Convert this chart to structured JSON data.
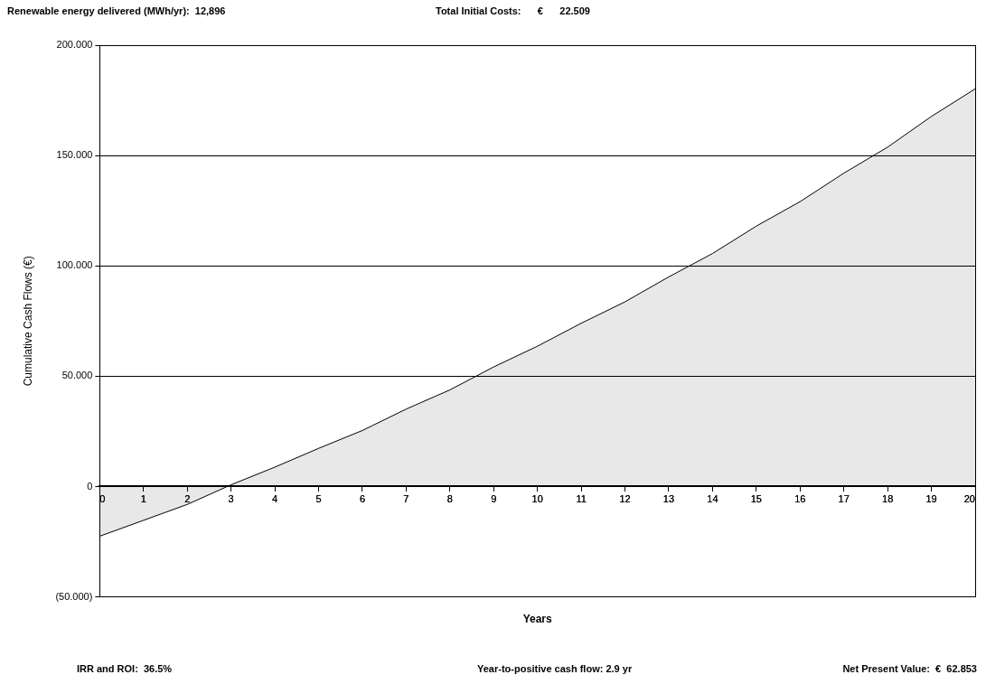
{
  "chart_data": {
    "type": "area",
    "xlabel": "Years",
    "ylabel": "Cumulative Cash Flows (€)",
    "annotations": [
      "Renewable energy delivered (MWh/yr):  12,896",
      "Total Initial Costs:      €      22.509",
      "IRR and ROI:  36.5%",
      "Year-to-positive cash flow: 2.9 yr",
      "Net Present Value:  €  62.853"
    ],
    "x": [
      0,
      1,
      2,
      3,
      4,
      5,
      6,
      7,
      8,
      9,
      10,
      11,
      12,
      13,
      14,
      15,
      16,
      17,
      18,
      19,
      20
    ],
    "series": [
      {
        "color": "#000000",
        "values": [
          -22.5,
          -15.3,
          -8.1,
          0.8,
          8.8,
          17.3,
          25.4,
          35.1,
          43.8,
          54.2,
          63.6,
          74,
          83.7,
          95,
          105.6,
          118,
          129.1,
          142,
          153.8,
          167.7,
          180.2
        ]
      }
    ],
    "xlim": [
      0,
      20
    ],
    "xticks": [
      0,
      1,
      2,
      3,
      4,
      5,
      6,
      7,
      8,
      9,
      10,
      11,
      12,
      13,
      14,
      15,
      16,
      17,
      18,
      19,
      20
    ],
    "ylim": [
      -50,
      200
    ],
    "yticks": [
      {
        "value": -50,
        "label": "(50.000)"
      },
      0,
      {
        "value": 50,
        "label": "50.000"
      },
      {
        "value": 100,
        "label": "100.000"
      },
      {
        "value": 150,
        "label": "150.000"
      },
      {
        "value": 200,
        "label": "200.000"
      }
    ],
    "grid": "y",
    "legend": false,
    "marker": "none",
    "line_style": "solid"
  }
}
